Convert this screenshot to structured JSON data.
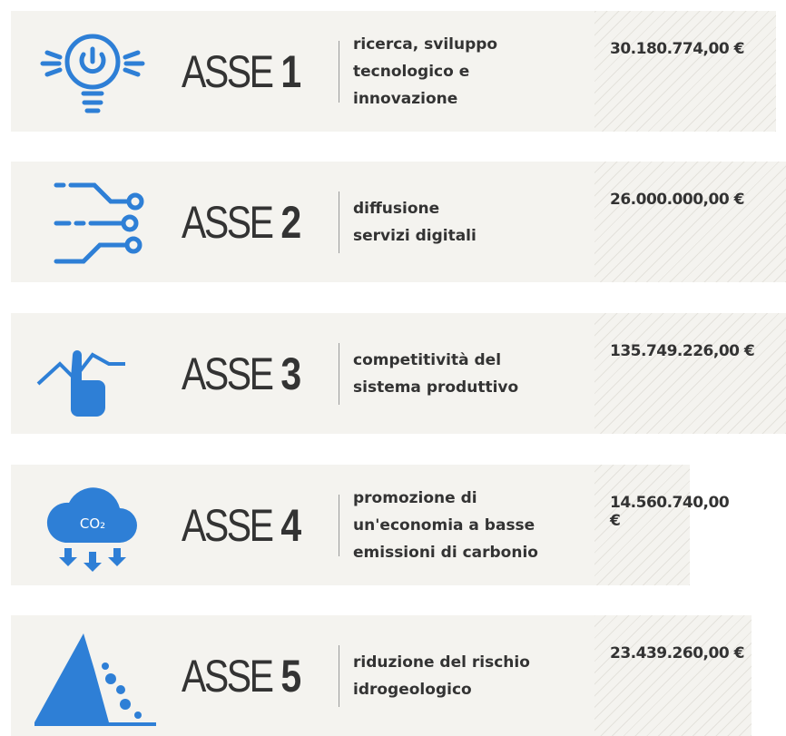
{
  "items": [
    {
      "label": "ASSE",
      "number": "1",
      "description": [
        "ricerca, sviluppo",
        "tecnologico e",
        "innovazione"
      ],
      "amount": "30.180.774,00 €"
    },
    {
      "label": "ASSE",
      "number": "2",
      "description": [
        "diffusione",
        "servizi digitali"
      ],
      "amount": "26.000.000,00 €"
    },
    {
      "label": "ASSE",
      "number": "3",
      "description": [
        "competitività del",
        "sistema produttivo"
      ],
      "amount": "135.749.226,00 €"
    },
    {
      "label": "ASSE",
      "number": "4",
      "description": [
        "promozione di",
        "un'economia a basse",
        "emissioni di carbonio"
      ],
      "amount": "14.560.740,00 €",
      "icon_label": "CO₂"
    },
    {
      "label": "ASSE",
      "number": "5",
      "description": [
        "riduzione del rischio",
        "idrogeologico"
      ],
      "amount": "23.439.260,00 €"
    }
  ]
}
